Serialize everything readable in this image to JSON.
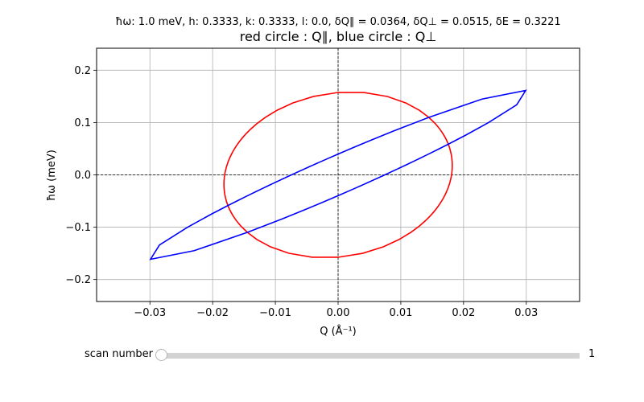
{
  "chart_data": {
    "type": "line",
    "suptitle": "ħω: 1.0 meV, h: 0.3333, k: 0.3333, l: 0.0, δQ∥ = 0.0364, δQ⊥ = 0.0515, δE = 0.3221",
    "title": "red circle : Q∥, blue circle : Q⊥",
    "xlabel": "Q (Å⁻¹)",
    "ylabel": "ħω (meV)",
    "xlim": [
      -0.0385,
      0.0385
    ],
    "ylim": [
      -0.242,
      0.242
    ],
    "xticks": [
      -0.03,
      -0.02,
      -0.01,
      0.0,
      0.01,
      0.02,
      0.03
    ],
    "xtick_labels": [
      "−0.03",
      "−0.02",
      "−0.01",
      "0.00",
      "0.01",
      "0.02",
      "0.03"
    ],
    "yticks": [
      -0.2,
      -0.1,
      0.0,
      0.1,
      0.2
    ],
    "ytick_labels": [
      "−0.2",
      "−0.1",
      "0.0",
      "0.1",
      "0.2"
    ],
    "grid": true,
    "zero_lines": true,
    "series": [
      {
        "color": "#ff0000",
        "shape": "ellipse",
        "center": [
          0.0,
          0.0
        ],
        "extremes": {
          "x_max": [
            0.0182,
            0.018
          ],
          "x_min": [
            -0.0182,
            -0.018
          ],
          "y_max": [
            0.0021,
            0.161
          ],
          "y_min": [
            -0.0021,
            -0.161
          ]
        }
      },
      {
        "color": "#0000ff",
        "shape": "ellipse",
        "center": [
          0.0,
          0.0
        ],
        "extremes": {
          "x_max": [
            0.0303,
            0.157
          ],
          "x_min": [
            -0.0303,
            -0.157
          ],
          "y_max": [
            0.0292,
            0.161
          ],
          "y_min": [
            -0.0292,
            -0.161
          ]
        }
      }
    ]
  },
  "slider": {
    "label": "scan number",
    "value": "1",
    "min": 1,
    "max": 1,
    "current": 1
  },
  "colors": {
    "axes": "#000000",
    "grid": "#b0b0b0",
    "slider_track": "#d3d3d3"
  }
}
